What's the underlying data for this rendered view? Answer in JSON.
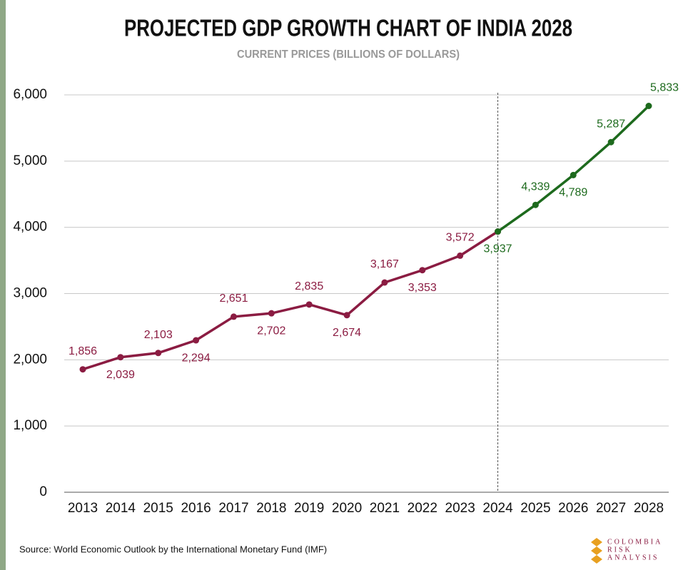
{
  "chart_data": {
    "type": "line",
    "title": "PROJECTED GDP GROWTH CHART OF INDIA 2028",
    "subtitle": "CURRENT PRICES (BILLIONS OF DOLLARS)",
    "categories": [
      "2013",
      "2014",
      "2015",
      "2016",
      "2017",
      "2018",
      "2019",
      "2020",
      "2021",
      "2022",
      "2023",
      "2024",
      "2025",
      "2026",
      "2027",
      "2028"
    ],
    "series": [
      {
        "color": "#8b1c42",
        "values": [
          1856,
          2039,
          2103,
          2294,
          2651,
          2702,
          2835,
          2674,
          3167,
          3353,
          3572,
          3937,
          null,
          null,
          null,
          null
        ],
        "value_labels": [
          "1,856",
          "2,039",
          "2,103",
          "2,294",
          "2,651",
          "2,702",
          "2,835",
          "2,674",
          "3,167",
          "3,353",
          "3,572",
          null,
          null,
          null,
          null,
          null
        ]
      },
      {
        "color": "#1d6a1d",
        "values": [
          null,
          null,
          null,
          null,
          null,
          null,
          null,
          null,
          null,
          null,
          null,
          3937,
          4339,
          4789,
          5287,
          5833
        ],
        "value_labels": [
          null,
          null,
          null,
          null,
          null,
          null,
          null,
          null,
          null,
          null,
          null,
          "3,937",
          "4,339",
          "4,789",
          "5,287",
          "5,833"
        ]
      }
    ],
    "ylim": [
      0,
      6000
    ],
    "yticks": [
      0,
      {
        "value": 1000,
        "label": "1,000"
      },
      {
        "value": 2000,
        "label": "2,000"
      },
      {
        "value": 3000,
        "label": "3,000"
      },
      {
        "value": 4000,
        "label": "4,000"
      },
      {
        "value": 5000,
        "label": "5,000"
      },
      {
        "value": 6000,
        "label": "6,000"
      }
    ],
    "grid": true
  },
  "footer": {
    "source": "Source: World Economic Outlook by the International Monetary Fund (IMF)",
    "logo": [
      "COLOMBIA",
      "RISK",
      "ANALYSIS"
    ]
  }
}
